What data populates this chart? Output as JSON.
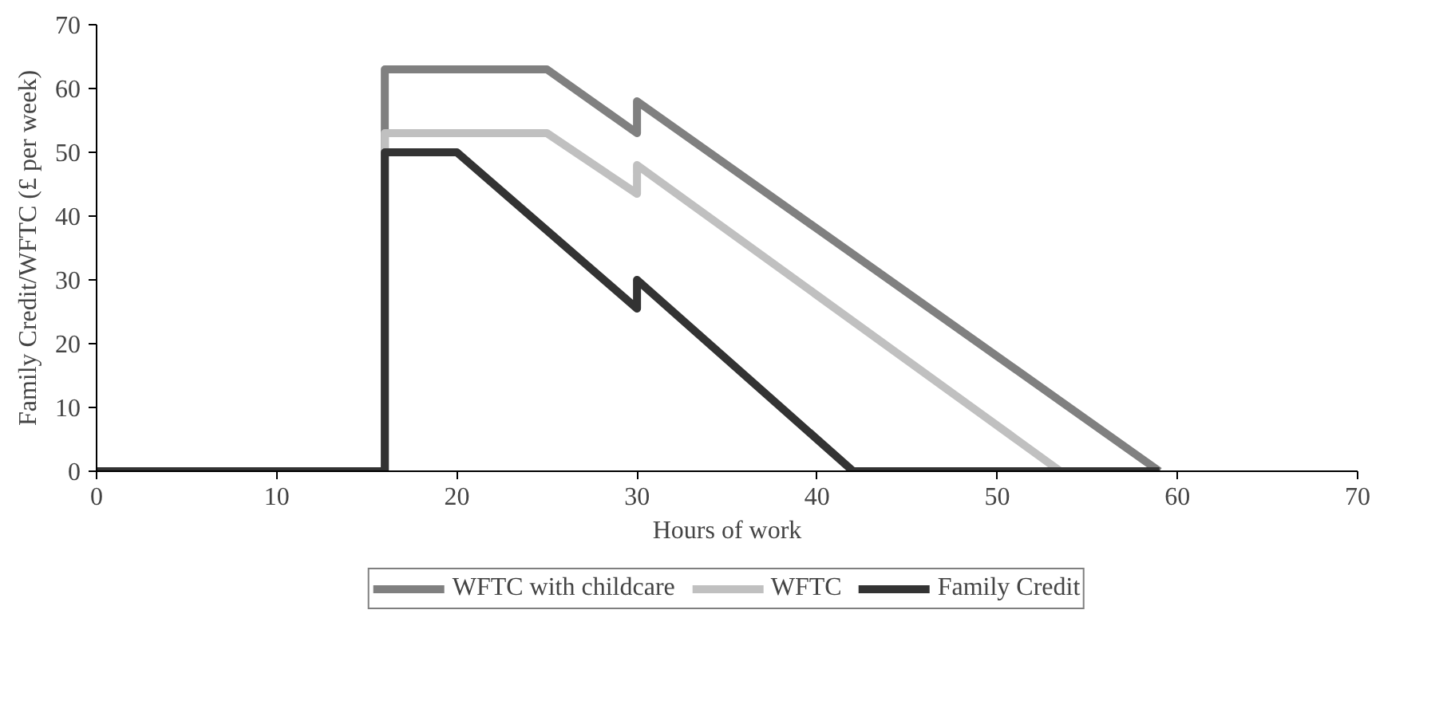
{
  "chart_data": {
    "type": "line",
    "xlabel": "Hours of work",
    "ylabel": "Family Credit/WFTC (£ per week)",
    "xlim": [
      0,
      70
    ],
    "ylim": [
      0,
      70
    ],
    "xticks": [
      0,
      10,
      20,
      30,
      40,
      50,
      60,
      70
    ],
    "yticks": [
      0,
      10,
      20,
      30,
      40,
      50,
      60,
      70
    ],
    "grid": false,
    "legend": "bottom",
    "marker": "none",
    "line_style": "solid",
    "series": [
      {
        "name": "WFTC with childcare",
        "color": "#808080",
        "x": [
          0,
          16,
          16,
          25,
          30,
          30,
          59
        ],
        "values": [
          0,
          0,
          63,
          63,
          53,
          58,
          0
        ]
      },
      {
        "name": "WFTC",
        "color": "#c0c0c0",
        "x": [
          0,
          16,
          16,
          25,
          30,
          30,
          53.5
        ],
        "values": [
          0,
          0,
          53,
          53,
          43.5,
          48,
          0
        ]
      },
      {
        "name": "Family Credit",
        "color": "#333333",
        "x": [
          0,
          16,
          16,
          20,
          30,
          30,
          42,
          59
        ],
        "values": [
          0,
          0,
          50,
          50,
          25.5,
          30,
          0,
          0
        ]
      }
    ]
  }
}
